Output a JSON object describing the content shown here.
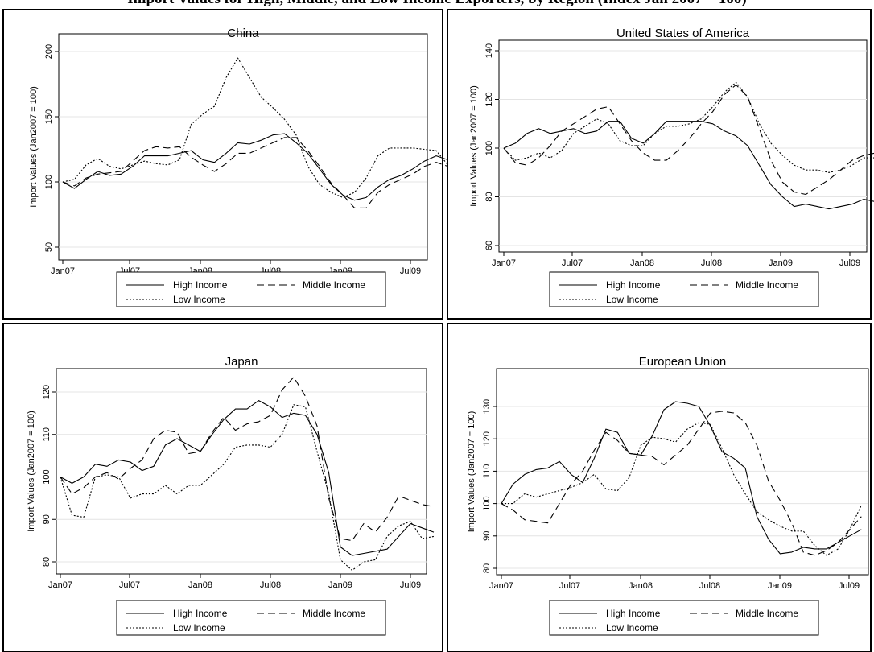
{
  "page": {
    "title": "Import Values for High, Middle, and Low Income Exporters, by Region (Index Jan 2007 = 100)"
  },
  "chart_data": [
    {
      "type": "line",
      "title": "China",
      "ylabel": "Import Values (Jan2007 = 100)",
      "xlabel": "",
      "ylim": [
        48,
        205
      ],
      "yticks": [
        50,
        100,
        150,
        200
      ],
      "xticks": [
        "Jan07",
        "Jul07",
        "Jan08",
        "Jul08",
        "Jan09",
        "Jul09"
      ],
      "grid": true,
      "legend": "bottom",
      "x_start": "Jan07",
      "series": [
        {
          "name": "High Income",
          "style": "solid",
          "values": [
            100,
            95,
            102,
            108,
            105,
            106,
            112,
            120,
            120,
            120,
            122,
            124,
            117,
            115,
            122,
            130,
            129,
            132,
            136,
            137,
            130,
            122,
            110,
            98,
            90,
            86,
            88,
            96,
            102,
            105,
            110,
            116,
            120,
            117
          ]
        },
        {
          "name": "Middle Income",
          "style": "dashed",
          "values": [
            100,
            97,
            103,
            106,
            107,
            108,
            116,
            124,
            127,
            126,
            127,
            119,
            113,
            108,
            114,
            122,
            122,
            126,
            130,
            134,
            134,
            124,
            112,
            99,
            90,
            80,
            80,
            92,
            98,
            102,
            106,
            112,
            115,
            112
          ]
        },
        {
          "name": "Low Income",
          "style": "dotted",
          "values": [
            100,
            102,
            113,
            118,
            112,
            110,
            113,
            116,
            114,
            113,
            117,
            144,
            152,
            158,
            180,
            195,
            180,
            165,
            157,
            148,
            136,
            112,
            98,
            92,
            88,
            92,
            103,
            120,
            126,
            126,
            126,
            125,
            124,
            113
          ]
        }
      ]
    },
    {
      "type": "line",
      "title": "United States of America",
      "ylabel": "Import Values (Jan2007 = 100)",
      "xlabel": "",
      "ylim": [
        59,
        142
      ],
      "yticks": [
        60,
        80,
        100,
        120,
        140
      ],
      "xticks": [
        "Jan07",
        "Jul07",
        "Jan08",
        "Jul08",
        "Jan09",
        "Jul09"
      ],
      "grid": true,
      "legend": "bottom",
      "x_start": "Jan07",
      "series": [
        {
          "name": "High Income",
          "style": "solid",
          "values": [
            100,
            102,
            106,
            108,
            106,
            107,
            108,
            106,
            107,
            111,
            111,
            104,
            102,
            106,
            111,
            111,
            111,
            111,
            110,
            107,
            105,
            101,
            93,
            85,
            80,
            76,
            77,
            76,
            75,
            76,
            77,
            79,
            78,
            77
          ]
        },
        {
          "name": "Middle Income",
          "style": "dashed",
          "values": [
            100,
            94,
            93,
            96,
            101,
            107,
            110,
            113,
            116,
            117,
            110,
            103,
            98,
            95,
            95,
            99,
            104,
            110,
            115,
            122,
            126,
            121,
            108,
            95,
            86,
            82,
            81,
            84,
            87,
            91,
            95,
            97,
            98,
            97
          ]
        },
        {
          "name": "Low Income",
          "style": "dotted",
          "values": [
            100,
            95,
            96,
            98,
            96,
            99,
            106,
            109,
            112,
            110,
            103,
            101,
            101,
            106,
            109,
            109,
            110,
            112,
            117,
            123,
            127,
            121,
            110,
            102,
            97,
            93,
            91,
            91,
            90,
            91,
            93,
            96,
            96,
            96
          ]
        }
      ]
    },
    {
      "type": "line",
      "title": "Japan",
      "ylabel": "Import Values (Jan2007 = 100)",
      "xlabel": "",
      "ylim": [
        78,
        126
      ],
      "yticks": [
        80,
        90,
        100,
        110,
        120
      ],
      "xticks": [
        "Jan07",
        "Jul07",
        "Jan08",
        "Jul08",
        "Jan09",
        "Jul09"
      ],
      "grid": true,
      "legend": "bottom",
      "x_start": "Jan07",
      "series": [
        {
          "name": "High Income",
          "style": "solid",
          "values": [
            100,
            98.5,
            100,
            103,
            102.5,
            104,
            103.5,
            101.5,
            102.5,
            107.5,
            109,
            107.5,
            106,
            110,
            113.5,
            116,
            116,
            118,
            116.5,
            114,
            115,
            114.5,
            110,
            101,
            83.5,
            81.5,
            82,
            82.5,
            83,
            86,
            89,
            88,
            87
          ]
        },
        {
          "name": "Middle Income",
          "style": "dashed",
          "values": [
            100,
            96,
            97.5,
            100,
            101,
            99.5,
            102,
            104,
            109,
            111,
            110.5,
            105.5,
            106,
            110.5,
            114,
            111,
            112.5,
            113,
            114.5,
            120.5,
            123.5,
            119,
            112,
            95,
            85.5,
            85,
            89,
            87,
            90.5,
            95.5,
            94.5,
            93.5,
            93
          ]
        },
        {
          "name": "Low Income",
          "style": "dotted",
          "values": [
            100,
            91,
            90.5,
            100,
            100.5,
            100,
            95,
            96,
            96,
            98,
            96,
            98,
            98,
            100.5,
            103,
            107,
            107.5,
            107.5,
            107,
            110,
            117,
            116.5,
            106,
            96,
            80.5,
            78,
            80,
            80.5,
            86,
            88.5,
            89.5,
            85.5,
            86
          ]
        }
      ]
    },
    {
      "type": "line",
      "title": "European Union",
      "ylabel": "Import Values (Jan2007 = 100)",
      "xlabel": "",
      "ylim": [
        79,
        134
      ],
      "yticks": [
        80,
        90,
        100,
        110,
        120,
        130
      ],
      "xticks": [
        "Jan07",
        "Jul07",
        "Jan08",
        "Jul08",
        "Jan09",
        "Jul09"
      ],
      "grid": true,
      "legend": "bottom",
      "x_start": "Jan07",
      "series": [
        {
          "name": "High Income",
          "style": "solid",
          "values": [
            100,
            106,
            109,
            110.5,
            111,
            113,
            109,
            106.5,
            114,
            123,
            122,
            115.5,
            115,
            121,
            129,
            131.5,
            131,
            130,
            124,
            116,
            114,
            111,
            96,
            89,
            84.5,
            85,
            86.5,
            86,
            86,
            88,
            90,
            92
          ]
        },
        {
          "name": "Middle Income",
          "style": "dashed",
          "values": [
            100,
            98,
            95,
            94.5,
            94,
            100,
            106,
            110,
            116.5,
            122,
            119.5,
            115.5,
            115,
            114.5,
            112,
            115,
            118,
            123,
            128,
            128.5,
            128,
            125,
            118,
            107,
            101,
            94,
            85,
            84,
            85.5,
            88,
            92,
            96
          ]
        },
        {
          "name": "Low Income",
          "style": "dotted",
          "values": [
            100,
            100,
            103,
            102,
            103,
            104,
            105,
            106.5,
            109,
            104.5,
            104,
            108,
            118,
            120.5,
            120,
            119,
            123,
            125,
            124.5,
            117,
            109,
            103,
            97.5,
            95,
            93,
            91.5,
            91.5,
            87,
            84,
            86,
            92,
            99.5
          ]
        }
      ]
    }
  ],
  "legend_labels": {
    "high": "High Income",
    "middle": "Middle Income",
    "low": "Low Income"
  }
}
